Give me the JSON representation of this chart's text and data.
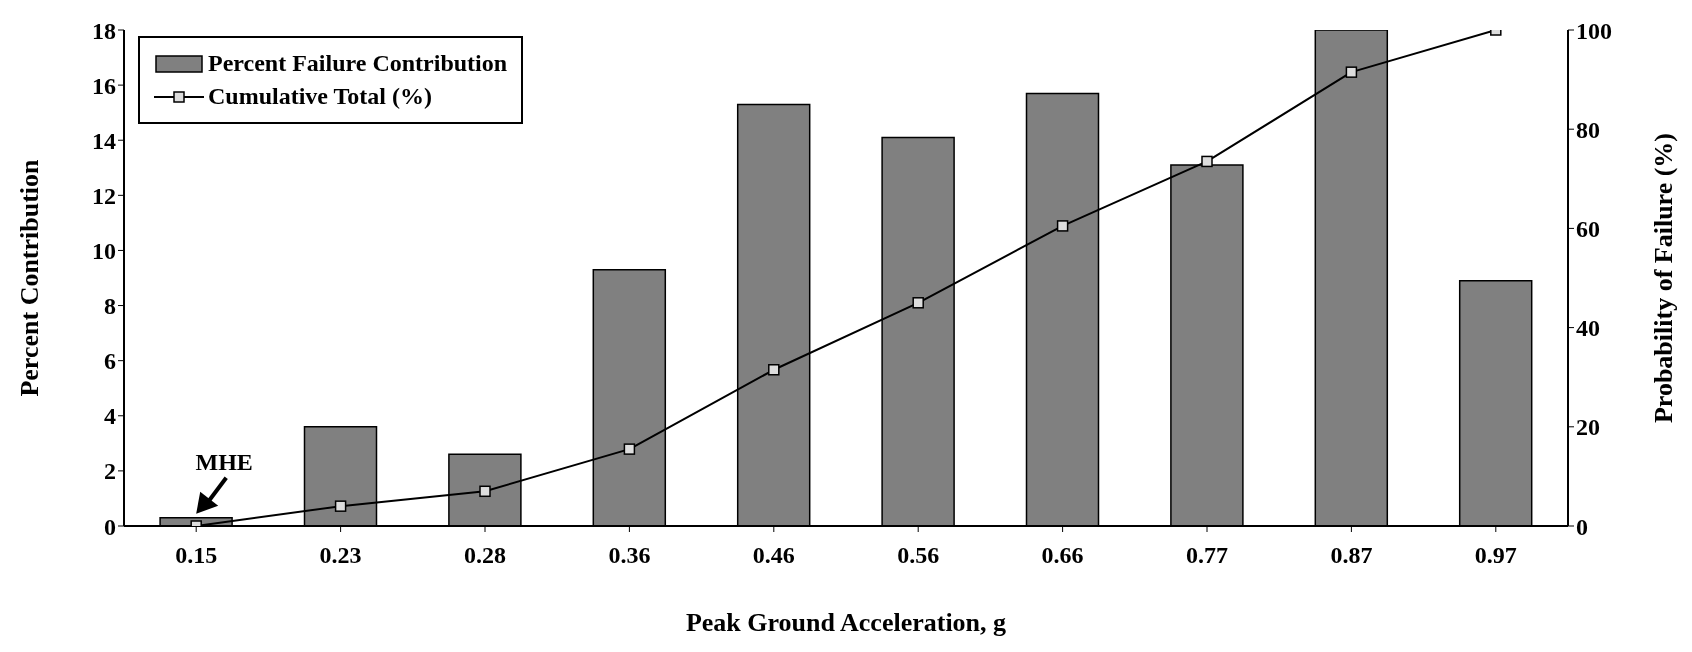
{
  "chart_data": {
    "type": "bar",
    "xlabel": "Peak Ground Acceleration, g",
    "ylabel": "Percent Contribution",
    "y2label": "Probability of Failure (%)",
    "categories": [
      "0.15",
      "0.23",
      "0.28",
      "0.36",
      "0.46",
      "0.56",
      "0.66",
      "0.77",
      "0.87",
      "0.97"
    ],
    "series": [
      {
        "name": "Percent Failure Contribution",
        "color": "#808080",
        "values": [
          0.3,
          3.6,
          2.6,
          9.3,
          15.3,
          14.1,
          15.7,
          13.1,
          18,
          8.9
        ]
      },
      {
        "name": "Cumulative Total (%)",
        "type": "line",
        "axis": "y2",
        "color": "#000000",
        "values": [
          0,
          4,
          7,
          15.5,
          31.5,
          45,
          60.5,
          73.5,
          91.5,
          100
        ]
      }
    ],
    "ylim": [
      0,
      18
    ],
    "yticks": [
      0,
      2,
      4,
      6,
      8,
      10,
      12,
      14,
      16,
      18
    ],
    "y2lim": [
      0,
      100
    ],
    "y2ticks": [
      0,
      20,
      40,
      60,
      80,
      100
    ],
    "marker": "square",
    "line_style": "solid",
    "legend": "top left",
    "annotations": [
      {
        "text": "MHE",
        "x": "0.15",
        "y": 0.3
      }
    ]
  }
}
